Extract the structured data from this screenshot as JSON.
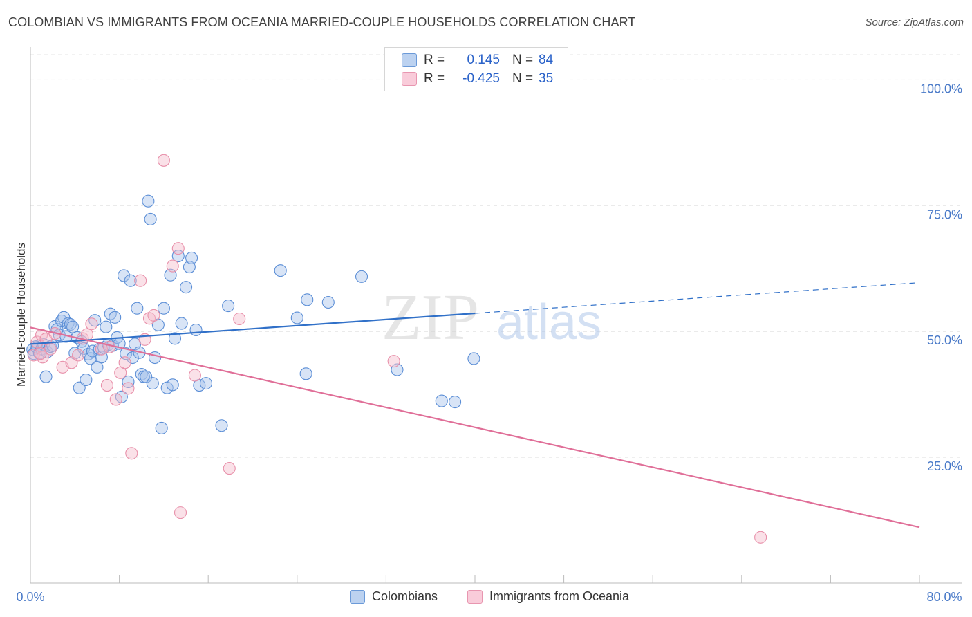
{
  "header": {
    "title": "COLOMBIAN VS IMMIGRANTS FROM OCEANIA MARRIED-COUPLE HOUSEHOLDS CORRELATION CHART",
    "source": "Source: ZipAtlas.com"
  },
  "colors": {
    "blue_fill": "#a8c4ea",
    "blue_stroke": "#5b8ed6",
    "blue_line": "#3070c8",
    "pink_fill": "#f5bccd",
    "pink_stroke": "#e890aa",
    "pink_line": "#e06f98",
    "grid": "#e4e4e4",
    "axis_text": "#4a7ac8"
  },
  "stats_legend": [
    {
      "r_label": "R =",
      "r_value": "0.145",
      "n_label": "N =",
      "n_value": "84"
    },
    {
      "r_label": "R =",
      "r_value": "-0.425",
      "n_label": "N =",
      "n_value": "35"
    }
  ],
  "chart_data": {
    "type": "scatter",
    "title": "COLOMBIAN VS IMMIGRANTS FROM OCEANIA MARRIED-COUPLE HOUSEHOLDS CORRELATION CHART",
    "xlabel": "",
    "ylabel": "Married-couple Households",
    "xlim": [
      0,
      80
    ],
    "ylim": [
      0,
      105
    ],
    "x_tick_labels": [
      "0.0%",
      "80.0%"
    ],
    "y_ticks": [
      100,
      75,
      50,
      25
    ],
    "y_tick_labels": [
      "100.0%",
      "75.0%",
      "50.0%",
      "25.0%"
    ],
    "grid": true,
    "watermark": "ZIPatlas",
    "series": [
      {
        "name": "Colombians",
        "color": "#5b8ed6",
        "points": [
          [
            0.2,
            46.4
          ],
          [
            0.3,
            45.6
          ],
          [
            0.5,
            47.0
          ],
          [
            0.6,
            46.8
          ],
          [
            0.8,
            45.7
          ],
          [
            1.0,
            46.5
          ],
          [
            1.2,
            47.4
          ],
          [
            1.4,
            41.0
          ],
          [
            1.5,
            45.9
          ],
          [
            1.8,
            47.0
          ],
          [
            2.0,
            47.2
          ],
          [
            2.2,
            51.0
          ],
          [
            2.4,
            50.4
          ],
          [
            2.6,
            49.3
          ],
          [
            2.8,
            52.1
          ],
          [
            3.0,
            52.8
          ],
          [
            3.2,
            49.0
          ],
          [
            3.4,
            51.6
          ],
          [
            3.6,
            51.4
          ],
          [
            3.8,
            50.9
          ],
          [
            4.0,
            45.7
          ],
          [
            4.2,
            48.8
          ],
          [
            4.4,
            38.8
          ],
          [
            4.6,
            48.0
          ],
          [
            4.8,
            46.6
          ],
          [
            5.0,
            40.4
          ],
          [
            5.2,
            45.5
          ],
          [
            5.4,
            44.6
          ],
          [
            5.6,
            46.1
          ],
          [
            5.8,
            52.2
          ],
          [
            6.0,
            42.9
          ],
          [
            6.2,
            46.5
          ],
          [
            6.4,
            44.9
          ],
          [
            6.6,
            46.8
          ],
          [
            6.8,
            50.9
          ],
          [
            7.0,
            47.4
          ],
          [
            7.2,
            53.5
          ],
          [
            7.4,
            47.2
          ],
          [
            7.6,
            52.8
          ],
          [
            7.8,
            48.8
          ],
          [
            8.0,
            47.6
          ],
          [
            8.2,
            37.0
          ],
          [
            8.4,
            61.1
          ],
          [
            8.6,
            45.6
          ],
          [
            8.8,
            40.0
          ],
          [
            9.0,
            60.1
          ],
          [
            9.2,
            44.8
          ],
          [
            9.4,
            47.5
          ],
          [
            9.6,
            54.6
          ],
          [
            9.8,
            45.8
          ],
          [
            10.0,
            41.5
          ],
          [
            10.2,
            41.0
          ],
          [
            10.4,
            41.0
          ],
          [
            10.6,
            75.9
          ],
          [
            10.8,
            72.3
          ],
          [
            11.0,
            39.7
          ],
          [
            11.2,
            44.8
          ],
          [
            11.5,
            51.3
          ],
          [
            11.8,
            30.8
          ],
          [
            12.0,
            54.6
          ],
          [
            12.3,
            38.8
          ],
          [
            12.6,
            61.2
          ],
          [
            12.8,
            39.4
          ],
          [
            13.0,
            48.6
          ],
          [
            13.3,
            65.0
          ],
          [
            13.6,
            51.6
          ],
          [
            14.0,
            58.8
          ],
          [
            14.3,
            62.8
          ],
          [
            14.5,
            64.6
          ],
          [
            14.9,
            50.3
          ],
          [
            15.2,
            39.3
          ],
          [
            15.8,
            39.7
          ],
          [
            17.2,
            31.3
          ],
          [
            17.8,
            55.1
          ],
          [
            22.5,
            62.1
          ],
          [
            24.0,
            52.7
          ],
          [
            24.8,
            41.6
          ],
          [
            24.9,
            56.3
          ],
          [
            26.8,
            55.8
          ],
          [
            29.8,
            60.9
          ],
          [
            33.0,
            42.4
          ],
          [
            37.0,
            36.2
          ],
          [
            38.2,
            36.0
          ],
          [
            39.9,
            44.6
          ]
        ],
        "trend": {
          "x": [
            0,
            40
          ],
          "y": [
            47.5,
            53.6
          ],
          "dashed_to": [
            80,
            59.7
          ]
        }
      },
      {
        "name": "Immigrants from Oceania",
        "color": "#e890aa",
        "points": [
          [
            0.3,
            45.3
          ],
          [
            0.6,
            47.9
          ],
          [
            1.0,
            49.3
          ],
          [
            1.4,
            48.5
          ],
          [
            1.8,
            46.5
          ],
          [
            2.2,
            49.6
          ],
          [
            2.9,
            42.9
          ],
          [
            3.7,
            43.8
          ],
          [
            4.3,
            45.3
          ],
          [
            4.7,
            48.6
          ],
          [
            5.1,
            49.4
          ],
          [
            5.5,
            51.5
          ],
          [
            6.4,
            46.5
          ],
          [
            6.9,
            39.3
          ],
          [
            7.1,
            46.9
          ],
          [
            7.7,
            36.5
          ],
          [
            8.1,
            41.8
          ],
          [
            8.5,
            43.8
          ],
          [
            8.8,
            38.7
          ],
          [
            9.1,
            25.8
          ],
          [
            9.9,
            60.1
          ],
          [
            10.3,
            48.4
          ],
          [
            10.7,
            52.6
          ],
          [
            11.1,
            53.2
          ],
          [
            12.0,
            84.0
          ],
          [
            12.8,
            63.0
          ],
          [
            13.3,
            66.5
          ],
          [
            13.5,
            14.0
          ],
          [
            14.8,
            41.3
          ],
          [
            17.9,
            22.8
          ],
          [
            18.8,
            52.5
          ],
          [
            32.7,
            44.1
          ],
          [
            65.7,
            9.1
          ],
          [
            1.1,
            44.9
          ],
          [
            0.9,
            45.6
          ]
        ],
        "trend": {
          "x": [
            0,
            80
          ],
          "y": [
            50.8,
            11.1
          ]
        }
      }
    ]
  },
  "bottom_legend": [
    {
      "label": "Colombians"
    },
    {
      "label": "Immigrants from Oceania"
    }
  ]
}
